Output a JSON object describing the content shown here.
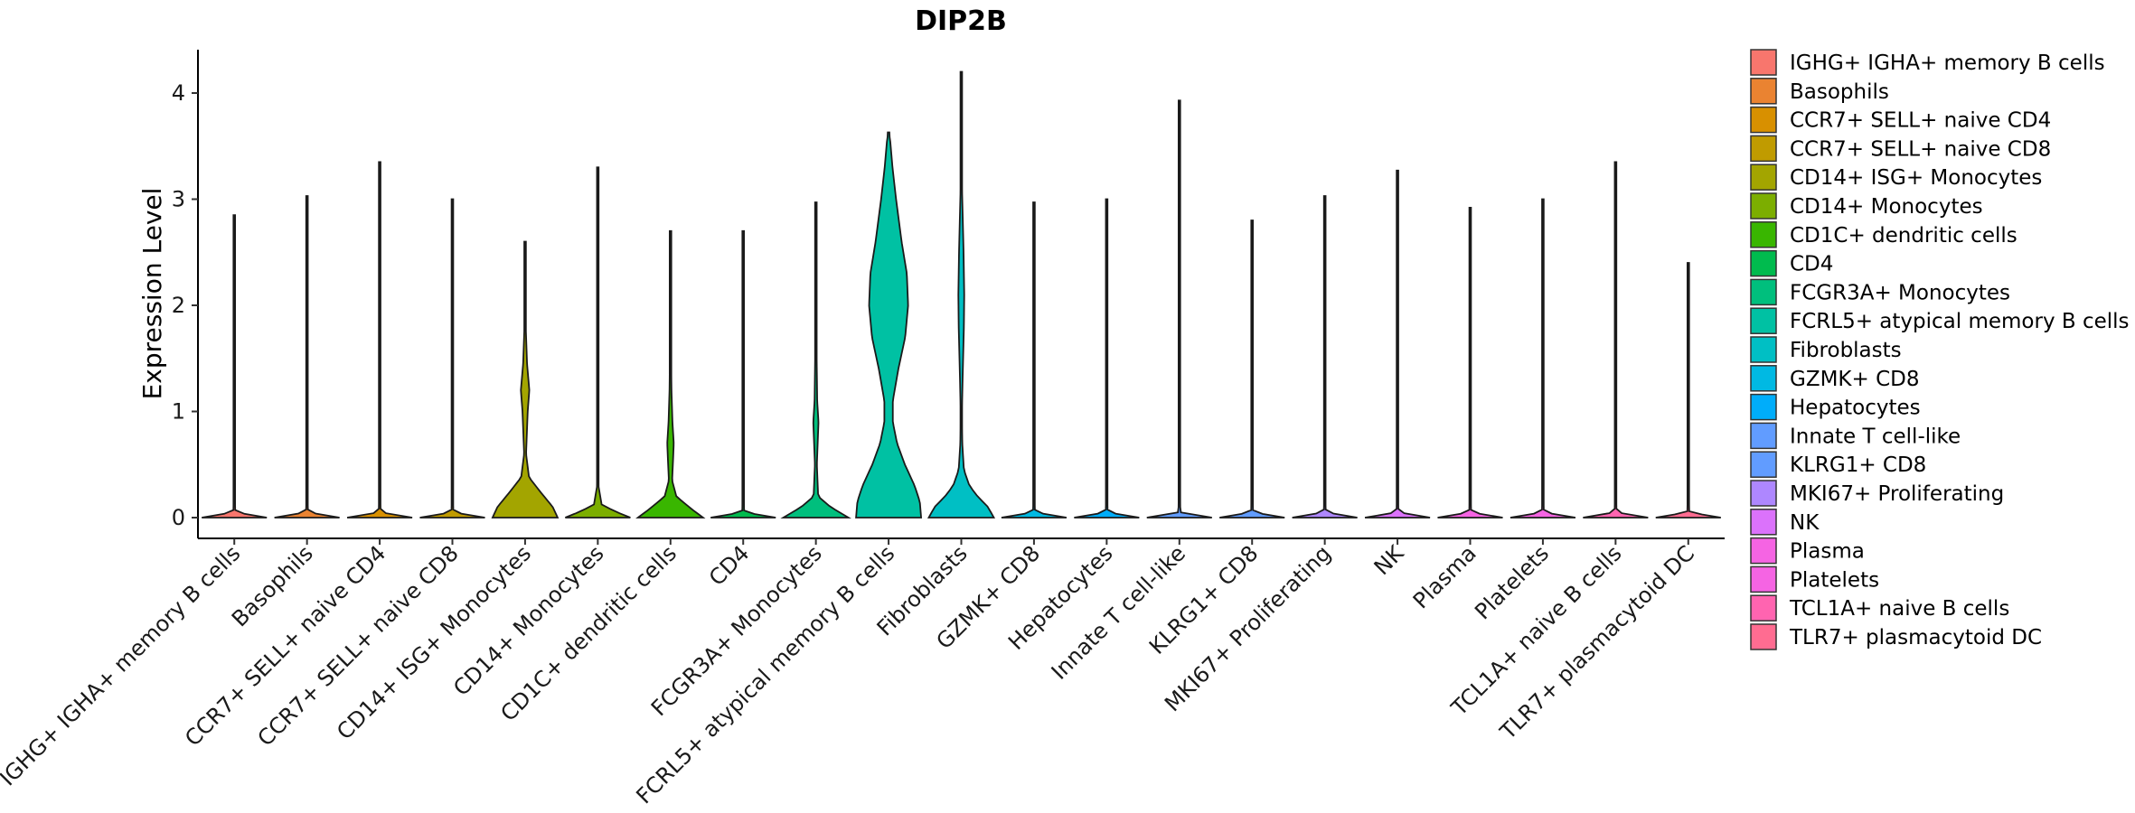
{
  "chart_data": {
    "type": "violin",
    "title": "DIP2B",
    "xlabel": "",
    "ylabel": "Expression Level",
    "ylim": [
      -0.2,
      4.42
    ],
    "yticks": [
      "0",
      "1",
      "2",
      "3",
      "4"
    ],
    "legend_position": "right",
    "categories": [
      {
        "name": "IGHG+ IGHA+ memory B cells",
        "legend": " IGHG+ IGHA+ memory B cells",
        "color": "#F8766D",
        "max": 2.85,
        "profile": [
          [
            0,
            1
          ],
          [
            0.05,
            0.03
          ],
          [
            0.3,
            0.01
          ],
          [
            1,
            0.005
          ]
        ]
      },
      {
        "name": "Basophils",
        "legend": "Basophils",
        "color": "#EA8331",
        "max": 3.03,
        "profile": [
          [
            0,
            1
          ],
          [
            0.05,
            0.03
          ],
          [
            0.3,
            0.01
          ],
          [
            1,
            0.005
          ]
        ]
      },
      {
        "name": "CCR7+ SELL+ naive CD4",
        "legend": "CCR7+ SELL+ naive CD4",
        "color": "#D89000",
        "max": 3.35,
        "profile": [
          [
            0,
            1
          ],
          [
            0.05,
            0.03
          ],
          [
            0.3,
            0.01
          ],
          [
            1,
            0.005
          ]
        ]
      },
      {
        "name": "CCR7+ SELL+ naive CD8",
        "legend": "CCR7+ SELL+ naive CD8",
        "color": "#C09B00",
        "max": 3.0,
        "profile": [
          [
            0,
            1
          ],
          [
            0.05,
            0.03
          ],
          [
            0.3,
            0.01
          ],
          [
            1,
            0.005
          ]
        ]
      },
      {
        "name": "CD14+ ISG+ Monocytes",
        "legend": "CD14+ ISG+ Monocytes",
        "color": "#A3A500",
        "max": 2.6,
        "profile": [
          [
            0,
            1
          ],
          [
            0.1,
            0.85
          ],
          [
            0.25,
            0.45
          ],
          [
            0.38,
            0.12
          ],
          [
            0.6,
            0.03
          ],
          [
            1.0,
            0.08
          ],
          [
            1.2,
            0.13
          ],
          [
            1.45,
            0.06
          ],
          [
            1.8,
            0.02
          ],
          [
            2.2,
            0.01
          ],
          [
            2.6,
            0.005
          ]
        ]
      },
      {
        "name": "CD14+ Monocytes",
        "legend": "CD14+ Monocytes",
        "color": "#7CAE00",
        "max": 3.3,
        "profile": [
          [
            0,
            1
          ],
          [
            0.05,
            0.6
          ],
          [
            0.12,
            0.12
          ],
          [
            0.3,
            0.02
          ],
          [
            0.6,
            0.01
          ],
          [
            1.2,
            0.015
          ],
          [
            1.8,
            0.01
          ],
          [
            3.3,
            0.005
          ]
        ]
      },
      {
        "name": "CD1C+ dendritic cells",
        "legend": "CD1C+ dendritic cells",
        "color": "#39B600",
        "max": 2.7,
        "profile": [
          [
            0,
            1
          ],
          [
            0.08,
            0.65
          ],
          [
            0.2,
            0.18
          ],
          [
            0.35,
            0.05
          ],
          [
            0.55,
            0.08
          ],
          [
            0.7,
            0.1
          ],
          [
            0.9,
            0.06
          ],
          [
            1.2,
            0.03
          ],
          [
            1.6,
            0.015
          ],
          [
            2.7,
            0.005
          ]
        ]
      },
      {
        "name": "CD4",
        "legend": "CD4",
        "color": "#00BB4E",
        "max": 2.7,
        "profile": [
          [
            0,
            1
          ],
          [
            0.05,
            0.03
          ],
          [
            0.3,
            0.01
          ],
          [
            1,
            0.005
          ]
        ]
      },
      {
        "name": "FCGR3A+ Monocytes",
        "legend": "FCGR3A+ Monocytes",
        "color": "#00BF7D",
        "max": 2.97,
        "profile": [
          [
            0,
            1
          ],
          [
            0.1,
            0.45
          ],
          [
            0.2,
            0.07
          ],
          [
            0.5,
            0.03
          ],
          [
            0.9,
            0.08
          ],
          [
            1.1,
            0.04
          ],
          [
            1.6,
            0.02
          ],
          [
            3.0,
            0.005
          ]
        ]
      },
      {
        "name": "FCRL5+ atypical memory B cells",
        "legend": "FCRL5+ atypical memory B cells",
        "color": "#00C1A3",
        "max": 3.63,
        "profile": [
          [
            0,
            1
          ],
          [
            0.15,
            0.96
          ],
          [
            0.3,
            0.8
          ],
          [
            0.5,
            0.5
          ],
          [
            0.7,
            0.26
          ],
          [
            0.9,
            0.13
          ],
          [
            1.1,
            0.13
          ],
          [
            1.4,
            0.3
          ],
          [
            1.7,
            0.51
          ],
          [
            2.0,
            0.6
          ],
          [
            2.3,
            0.56
          ],
          [
            2.6,
            0.4
          ],
          [
            3.0,
            0.23
          ],
          [
            3.3,
            0.12
          ],
          [
            3.55,
            0.05
          ],
          [
            3.63,
            0.01
          ]
        ]
      },
      {
        "name": "Fibroblasts",
        "legend": "Fibroblasts",
        "color": "#00BFC4",
        "max": 4.2,
        "profile": [
          [
            0,
            1
          ],
          [
            0.1,
            0.82
          ],
          [
            0.2,
            0.5
          ],
          [
            0.3,
            0.25
          ],
          [
            0.45,
            0.08
          ],
          [
            0.7,
            0.03
          ],
          [
            1.0,
            0.02
          ],
          [
            1.3,
            0.04
          ],
          [
            1.8,
            0.08
          ],
          [
            2.1,
            0.09
          ],
          [
            2.5,
            0.07
          ],
          [
            3.0,
            0.03
          ],
          [
            3.3,
            0.008
          ],
          [
            4.2,
            0.004
          ]
        ]
      },
      {
        "name": "GZMK+ CD8",
        "legend": "GZMK+ CD8",
        "color": "#00B9E3",
        "max": 2.97,
        "profile": [
          [
            0,
            1
          ],
          [
            0.05,
            0.03
          ],
          [
            0.3,
            0.01
          ],
          [
            1,
            0.005
          ]
        ]
      },
      {
        "name": "Hepatocytes",
        "legend": "Hepatocytes",
        "color": "#00ADFA",
        "max": 3.0,
        "profile": [
          [
            0,
            1
          ],
          [
            0.05,
            0.03
          ],
          [
            0.3,
            0.01
          ],
          [
            1,
            0.005
          ]
        ]
      },
      {
        "name": "Innate T cell-like",
        "legend": "Innate T cell-like",
        "color": "#619CFF",
        "max": 3.93,
        "profile": [
          [
            0,
            1
          ],
          [
            0.05,
            0.03
          ],
          [
            0.3,
            0.01
          ],
          [
            1,
            0.005
          ]
        ]
      },
      {
        "name": "KLRG1+ CD8",
        "legend": "KLRG1+ CD8",
        "color": "#619CFF",
        "max": 2.8,
        "profile": [
          [
            0,
            1
          ],
          [
            0.05,
            0.03
          ],
          [
            0.3,
            0.01
          ],
          [
            1,
            0.005
          ]
        ]
      },
      {
        "name": "MKI67+ Proliferating",
        "legend": "MKI67+ Proliferating",
        "color": "#AE87FF",
        "max": 3.03,
        "profile": [
          [
            0,
            1
          ],
          [
            0.05,
            0.03
          ],
          [
            0.3,
            0.01
          ],
          [
            1,
            0.005
          ]
        ]
      },
      {
        "name": "NK",
        "legend": "NK",
        "color": "#DB72FB",
        "max": 3.27,
        "profile": [
          [
            0,
            1
          ],
          [
            0.05,
            0.03
          ],
          [
            0.3,
            0.01
          ],
          [
            1,
            0.005
          ]
        ]
      },
      {
        "name": "Plasma",
        "legend": "Plasma",
        "color": "#F564E3",
        "max": 2.92,
        "profile": [
          [
            0,
            1
          ],
          [
            0.05,
            0.03
          ],
          [
            0.3,
            0.01
          ],
          [
            1,
            0.005
          ]
        ]
      },
      {
        "name": "Platelets",
        "legend": "Platelets",
        "color": "#F564E3",
        "max": 3.0,
        "profile": [
          [
            0,
            1
          ],
          [
            0.05,
            0.03
          ],
          [
            0.3,
            0.01
          ],
          [
            1,
            0.005
          ]
        ]
      },
      {
        "name": "TCL1A+ naive B cells",
        "legend": "TCL1A+ naive B cells",
        "color": "#FF64B0",
        "max": 3.35,
        "profile": [
          [
            0,
            1
          ],
          [
            0.05,
            0.03
          ],
          [
            0.3,
            0.01
          ],
          [
            1,
            0.005
          ]
        ]
      },
      {
        "name": "TLR7+ plasmacytoid DC",
        "legend": "TLR7+ plasmacytoid DC",
        "color": "#FF6C91",
        "max": 2.4,
        "profile": [
          [
            0,
            1
          ],
          [
            0.05,
            0.03
          ],
          [
            0.3,
            0.01
          ],
          [
            1,
            0.005
          ]
        ]
      }
    ]
  }
}
